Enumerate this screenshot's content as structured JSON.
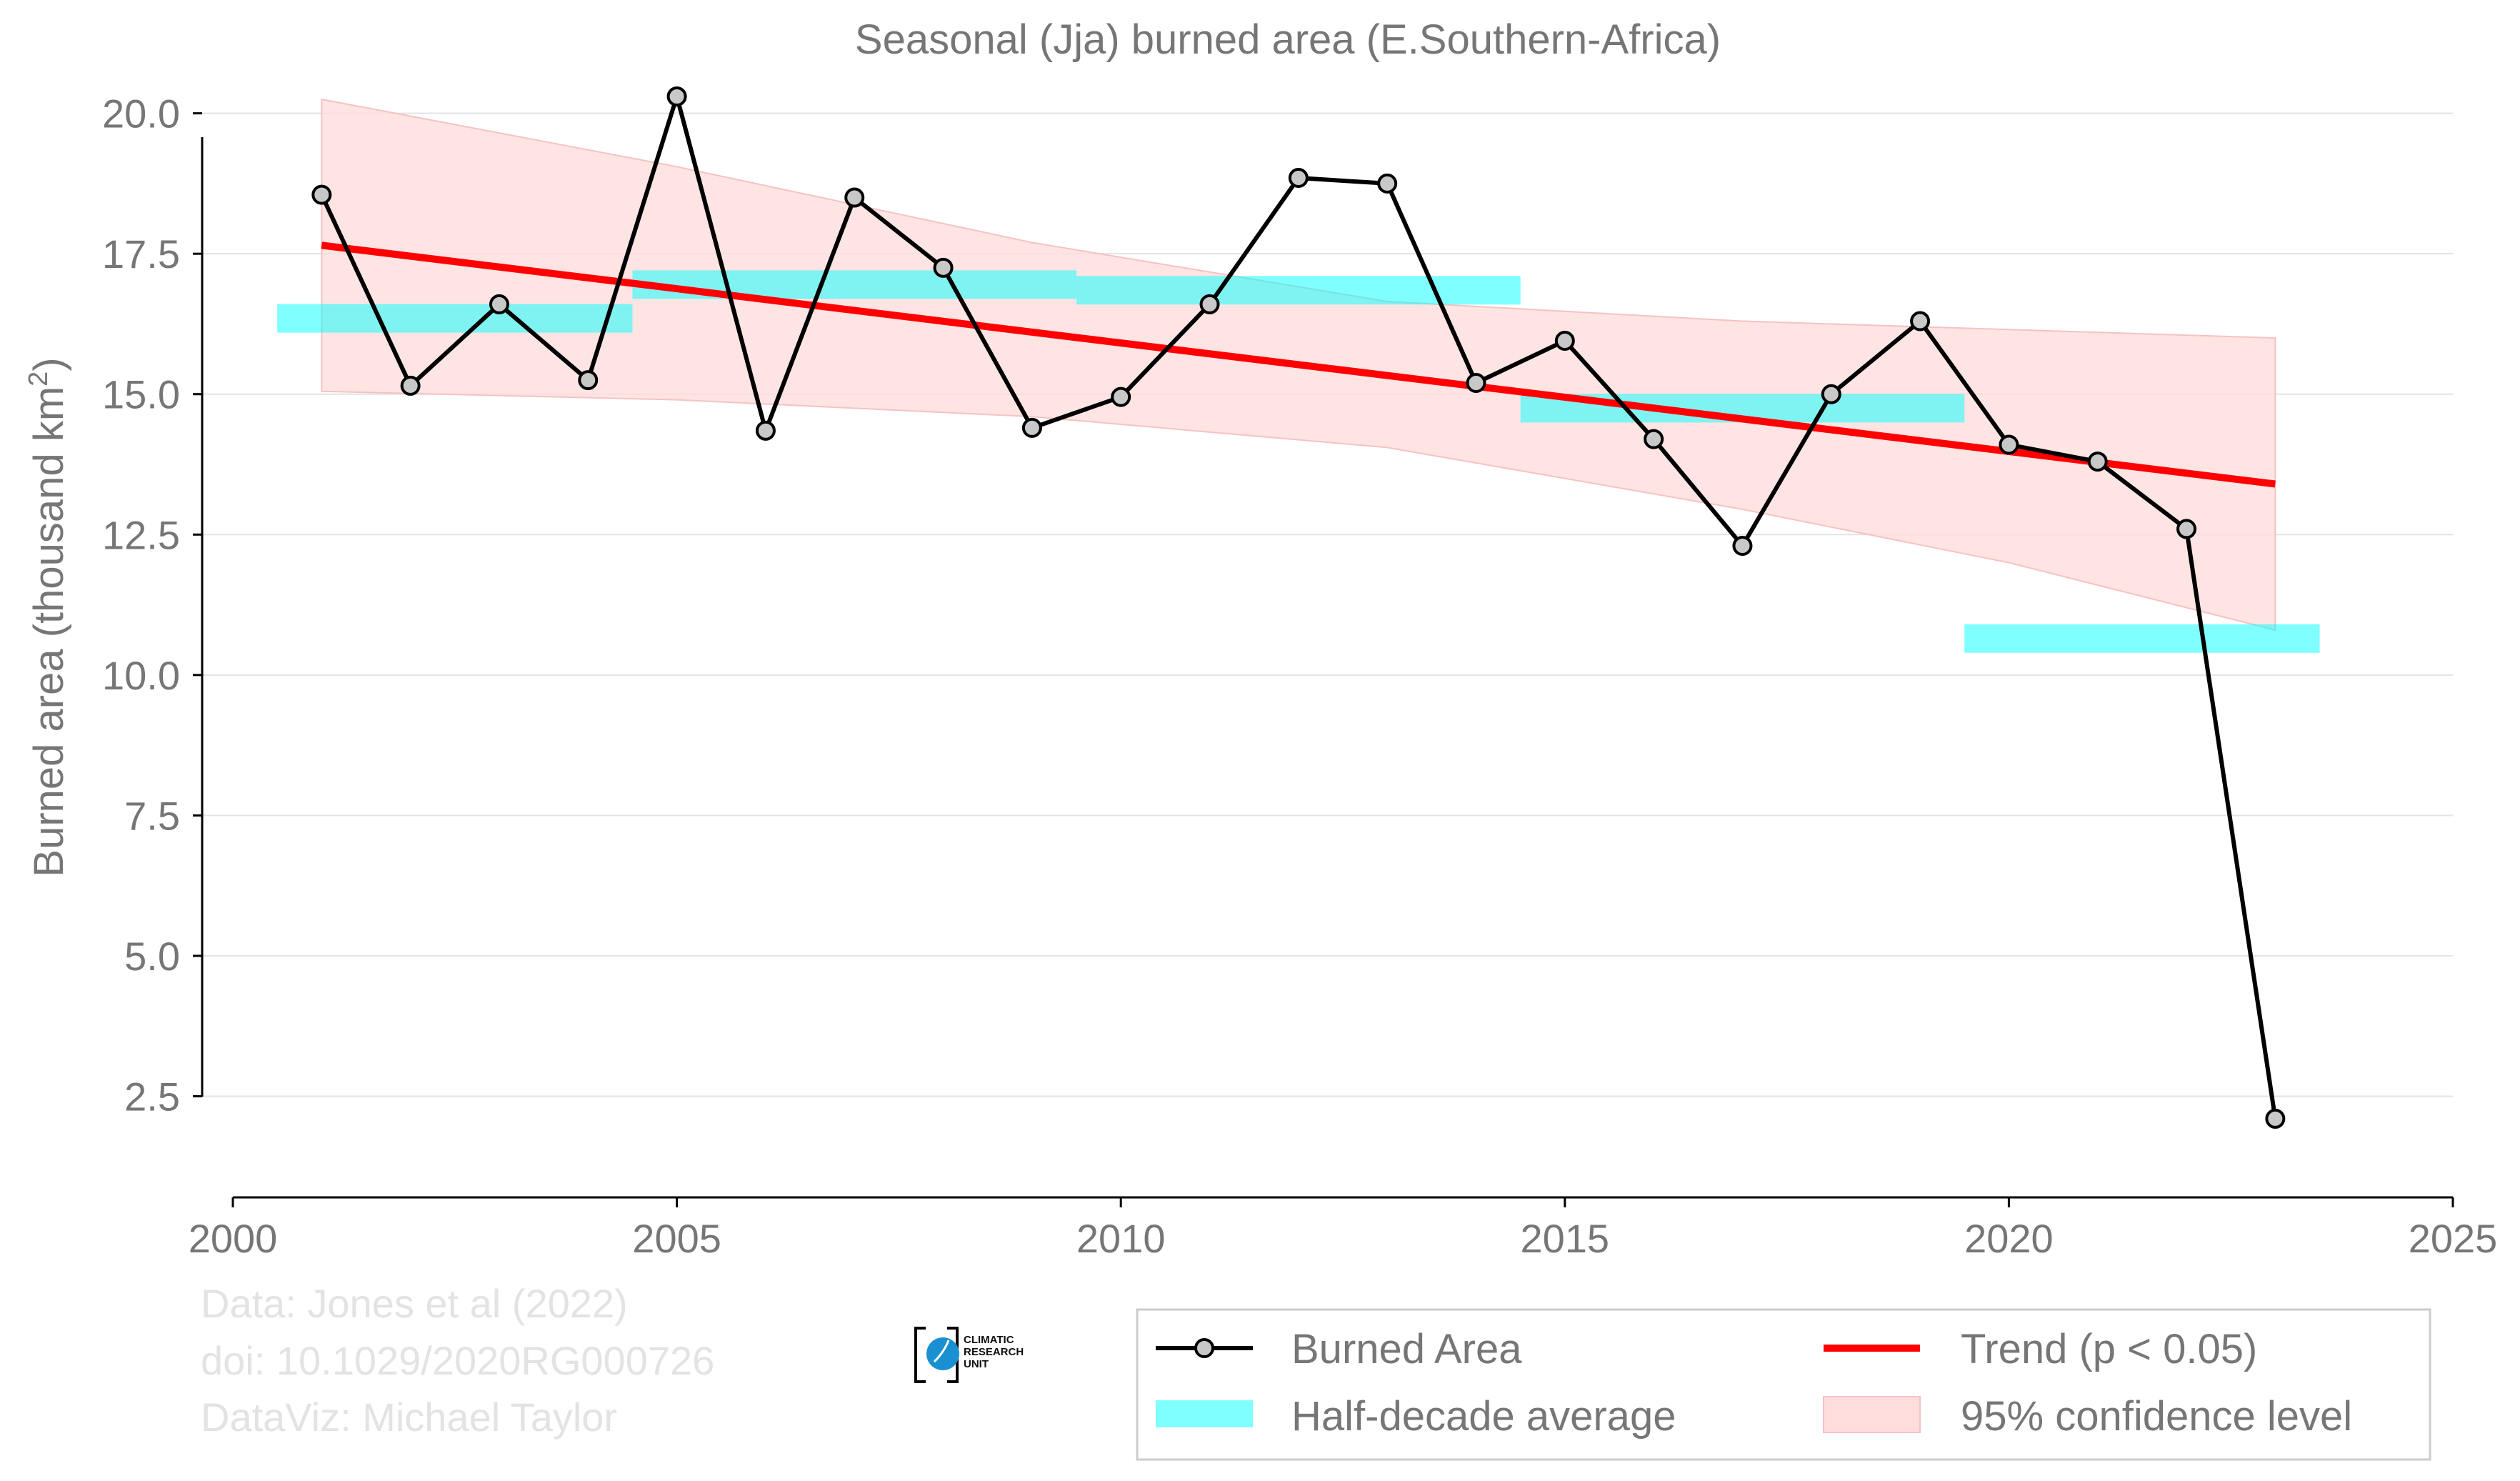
{
  "chart_data": {
    "type": "line",
    "title": "Seasonal (Jja) burned area (E.Southern-Africa)",
    "ylabel": "Burned area (thousand km",
    "ylabel_sup": "2",
    "ylabel_close": ")",
    "xlabel": "",
    "xlim": [
      2000,
      2025
    ],
    "ylim": [
      0.7,
      21.0
    ],
    "x_ticks": [
      2000,
      2005,
      2010,
      2015,
      2020,
      2025
    ],
    "x_tick_labels": [
      "2000",
      "2005",
      "2010",
      "2015",
      "2020",
      "2025"
    ],
    "y_ticks": [
      2.5,
      5.0,
      7.5,
      10.0,
      12.5,
      15.0,
      17.5,
      20.0
    ],
    "y_tick_labels": [
      "2.5",
      "5.0",
      "7.5",
      "10.0",
      "12.5",
      "15.0",
      "17.5",
      "20.0"
    ],
    "grid": "horizontal",
    "legend_position": "bottom-right",
    "series": [
      {
        "name": "Burned Area",
        "kind": "line-marker",
        "color": "#000000",
        "marker_fill": "#c8c8c8",
        "x": [
          2001,
          2002,
          2003,
          2004,
          2005,
          2006,
          2007,
          2008,
          2009,
          2010,
          2011,
          2012,
          2013,
          2014,
          2015,
          2016,
          2017,
          2018,
          2019,
          2020,
          2021,
          2022,
          2023
        ],
        "y": [
          18.55,
          15.15,
          16.6,
          15.25,
          20.3,
          14.35,
          18.5,
          17.25,
          14.4,
          14.95,
          16.6,
          18.85,
          18.75,
          15.2,
          15.95,
          14.2,
          12.3,
          15.0,
          16.3,
          14.1,
          13.8,
          12.6,
          2.1
        ]
      },
      {
        "name": "Half-decade average",
        "kind": "step-bars",
        "color": "#00ffff",
        "segments": [
          {
            "x0": 2000.5,
            "x1": 2004.5,
            "y": 16.35
          },
          {
            "x0": 2004.5,
            "x1": 2009.5,
            "y": 16.95
          },
          {
            "x0": 2009.5,
            "x1": 2014.5,
            "y": 16.85
          },
          {
            "x0": 2014.5,
            "x1": 2019.5,
            "y": 14.75
          },
          {
            "x0": 2019.5,
            "x1": 2023.5,
            "y": 10.65
          }
        ]
      },
      {
        "name": "Trend (p < 0.05)",
        "kind": "line",
        "color": "#ff0000",
        "x": [
          2001,
          2023
        ],
        "y": [
          17.65,
          13.4
        ]
      },
      {
        "name": "95% confidence level",
        "kind": "band",
        "color": "#ffdddd",
        "x": [
          2001,
          2005,
          2009,
          2013,
          2017,
          2020,
          2023
        ],
        "upper": [
          20.25,
          19.05,
          17.7,
          16.65,
          16.3,
          16.15,
          16.0
        ],
        "lower": [
          15.05,
          14.9,
          14.6,
          14.05,
          12.95,
          12.0,
          10.8
        ]
      }
    ]
  },
  "source": {
    "line1": "Data: Jones et al (2022)",
    "line2": "doi: 10.1029/2020RG000726",
    "line3": "DataViz: Michael Taylor"
  },
  "logo": {
    "line1": "CLIMATIC",
    "line2": "RESEARCH",
    "line3": "UNIT"
  }
}
